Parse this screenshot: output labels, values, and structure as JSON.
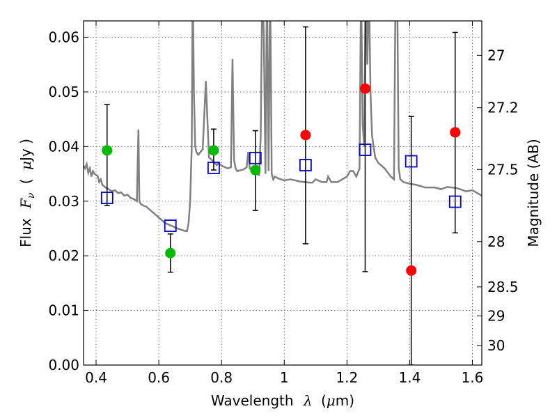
{
  "chart_data": {
    "type": "scatter",
    "xlabel_prefix": "Wavelength",
    "xlabel_symbol": "λ",
    "xlabel_unit_open": "(",
    "xlabel_unit_mu": "μ",
    "xlabel_unit_rest": "m)",
    "ylabel_prefix": "Flux",
    "ylabel_symbol": "F",
    "ylabel_subscript": "ν",
    "ylabel_unit_open": "(",
    "ylabel_unit_mu": "μ",
    "ylabel_unit_rest": "Jy )",
    "y2label": "Magnitude (AB)",
    "xlim": [
      0.36,
      1.63
    ],
    "ylim": [
      0.0,
      0.063
    ],
    "grid": true,
    "x_ticks": [
      {
        "value": 0.4,
        "label": "0.4"
      },
      {
        "value": 0.6,
        "label": "0.6"
      },
      {
        "value": 0.8,
        "label": "0.8"
      },
      {
        "value": 1.0,
        "label": "1"
      },
      {
        "value": 1.2,
        "label": "1.2"
      },
      {
        "value": 1.4,
        "label": "1.4"
      },
      {
        "value": 1.6,
        "label": "1.6"
      }
    ],
    "y_ticks": [
      {
        "value": 0.0,
        "label": "0.00"
      },
      {
        "value": 0.01,
        "label": "0.01"
      },
      {
        "value": 0.02,
        "label": "0.02"
      },
      {
        "value": 0.03,
        "label": "0.03"
      },
      {
        "value": 0.04,
        "label": "0.04"
      },
      {
        "value": 0.05,
        "label": "0.05"
      },
      {
        "value": 0.06,
        "label": "0.06"
      }
    ],
    "y2_ticks": [
      {
        "flux": 0.0567,
        "label": "27"
      },
      {
        "flux": 0.0471,
        "label": "27.2"
      },
      {
        "flux": 0.0358,
        "label": "27.5"
      },
      {
        "flux": 0.0226,
        "label": "28"
      },
      {
        "flux": 0.0143,
        "label": "28.5"
      },
      {
        "flux": 0.009,
        "label": "29"
      },
      {
        "flux": 0.0036,
        "label": "30"
      }
    ],
    "colors": {
      "spectrum": "#808080",
      "green_points": "#00bb00",
      "red_points": "#ff0000",
      "model_squares": "#0000cc",
      "errorbars": "#000000",
      "grid": "#555555"
    },
    "spectrum": {
      "x": [
        0.36,
        0.365,
        0.37,
        0.375,
        0.38,
        0.385,
        0.39,
        0.395,
        0.4,
        0.405,
        0.41,
        0.415,
        0.42,
        0.43,
        0.44,
        0.45,
        0.46,
        0.47,
        0.48,
        0.49,
        0.5,
        0.51,
        0.52,
        0.53,
        0.535,
        0.538,
        0.541,
        0.545,
        0.55,
        0.56,
        0.57,
        0.58,
        0.59,
        0.6,
        0.62,
        0.64,
        0.66,
        0.68,
        0.69,
        0.695,
        0.7,
        0.705,
        0.708,
        0.712,
        0.716,
        0.72,
        0.725,
        0.73,
        0.74,
        0.75,
        0.76,
        0.77,
        0.778,
        0.785,
        0.79,
        0.8,
        0.82,
        0.83,
        0.835,
        0.84,
        0.845,
        0.85,
        0.87,
        0.88,
        0.885,
        0.89,
        0.9,
        0.91,
        0.92,
        0.925,
        0.93,
        0.935,
        0.94,
        0.945,
        0.95,
        0.955,
        0.96,
        0.965,
        0.97,
        0.98,
        1.0,
        1.02,
        1.05,
        1.08,
        1.09,
        1.1,
        1.12,
        1.135,
        1.14,
        1.145,
        1.15,
        1.17,
        1.2,
        1.21,
        1.215,
        1.22,
        1.23,
        1.24,
        1.245,
        1.25,
        1.255,
        1.26,
        1.265,
        1.27,
        1.275,
        1.28,
        1.285,
        1.29,
        1.3,
        1.32,
        1.34,
        1.35,
        1.355,
        1.36,
        1.365,
        1.37,
        1.38,
        1.4,
        1.42,
        1.45,
        1.48,
        1.5,
        1.52,
        1.55,
        1.58,
        1.6,
        1.63
      ],
      "y": [
        0.0365,
        0.036,
        0.0368,
        0.0352,
        0.036,
        0.0345,
        0.0355,
        0.035,
        0.0348,
        0.0346,
        0.0335,
        0.034,
        0.033,
        0.0325,
        0.0322,
        0.0318,
        0.032,
        0.0315,
        0.0316,
        0.031,
        0.0312,
        0.0306,
        0.0304,
        0.03,
        0.0431,
        0.03,
        0.0296,
        0.0294,
        0.0292,
        0.029,
        0.0285,
        0.028,
        0.0275,
        0.027,
        0.026,
        0.0255,
        0.025,
        0.0246,
        0.0245,
        0.026,
        0.03,
        0.04,
        0.07,
        0.05,
        0.04,
        0.039,
        0.0385,
        0.0388,
        0.0395,
        0.052,
        0.038,
        0.0375,
        0.037,
        0.0366,
        0.037,
        0.0365,
        0.036,
        0.0362,
        0.056,
        0.0375,
        0.036,
        0.0355,
        0.0358,
        0.0362,
        0.039,
        0.036,
        0.0355,
        0.035,
        0.0348,
        0.042,
        0.07,
        0.06,
        0.035,
        0.07,
        0.0355,
        0.07,
        0.035,
        0.034,
        0.0345,
        0.0342,
        0.0338,
        0.034,
        0.0336,
        0.0334,
        0.0334,
        0.034,
        0.0335,
        0.0335,
        0.0345,
        0.034,
        0.0335,
        0.0335,
        0.0345,
        0.0355,
        0.0355,
        0.0355,
        0.0345,
        0.036,
        0.07,
        0.044,
        0.04,
        0.07,
        0.055,
        0.07,
        0.05,
        0.042,
        0.04,
        0.038,
        0.037,
        0.036,
        0.0345,
        0.034,
        0.07,
        0.07,
        0.036,
        0.034,
        0.0335,
        0.0332,
        0.033,
        0.0325,
        0.0325,
        0.0322,
        0.0326,
        0.0324,
        0.0318,
        0.032,
        0.031
      ]
    },
    "measured_points": [
      {
        "x": 0.435,
        "y": 0.0393,
        "color": "green",
        "err_lo": null,
        "err_hi": null
      },
      {
        "x": 0.637,
        "y": 0.0205,
        "color": "green",
        "err_lo": null,
        "err_hi": null
      },
      {
        "x": 0.775,
        "y": 0.0393,
        "color": "green",
        "err_lo": null,
        "err_hi": null
      },
      {
        "x": 0.908,
        "y": 0.0357,
        "color": "green",
        "err_lo": null,
        "err_hi": null
      },
      {
        "x": 1.068,
        "y": 0.0421,
        "color": "red",
        "err_lo": null,
        "err_hi": null
      },
      {
        "x": 1.258,
        "y": 0.0506,
        "color": "red",
        "err_lo": null,
        "err_hi": null
      },
      {
        "x": 1.405,
        "y": 0.0173,
        "color": "red",
        "err_lo": null,
        "err_hi": null
      },
      {
        "x": 1.545,
        "y": 0.0426,
        "color": "red",
        "err_lo": null,
        "err_hi": null
      }
    ],
    "error_bars": [
      {
        "x": 0.435,
        "lo": 0.0292,
        "hi": 0.0477
      },
      {
        "x": 0.637,
        "lo": 0.017,
        "hi": 0.024
      },
      {
        "x": 0.775,
        "lo": 0.0357,
        "hi": 0.0432
      },
      {
        "x": 0.908,
        "lo": 0.0283,
        "hi": 0.0429
      },
      {
        "x": 1.068,
        "lo": 0.0222,
        "hi": 0.0619
      },
      {
        "x": 1.258,
        "lo": 0.0171,
        "hi": 0.063
      },
      {
        "x": 1.405,
        "lo": 0.0,
        "hi": 0.0455
      },
      {
        "x": 1.545,
        "lo": 0.0242,
        "hi": 0.0609
      }
    ],
    "model_points": [
      {
        "x": 0.435,
        "y": 0.0306
      },
      {
        "x": 0.637,
        "y": 0.0255
      },
      {
        "x": 0.775,
        "y": 0.0361
      },
      {
        "x": 0.908,
        "y": 0.0379
      },
      {
        "x": 1.068,
        "y": 0.0366
      },
      {
        "x": 1.258,
        "y": 0.0394
      },
      {
        "x": 1.405,
        "y": 0.0373
      },
      {
        "x": 1.545,
        "y": 0.0299
      }
    ]
  }
}
